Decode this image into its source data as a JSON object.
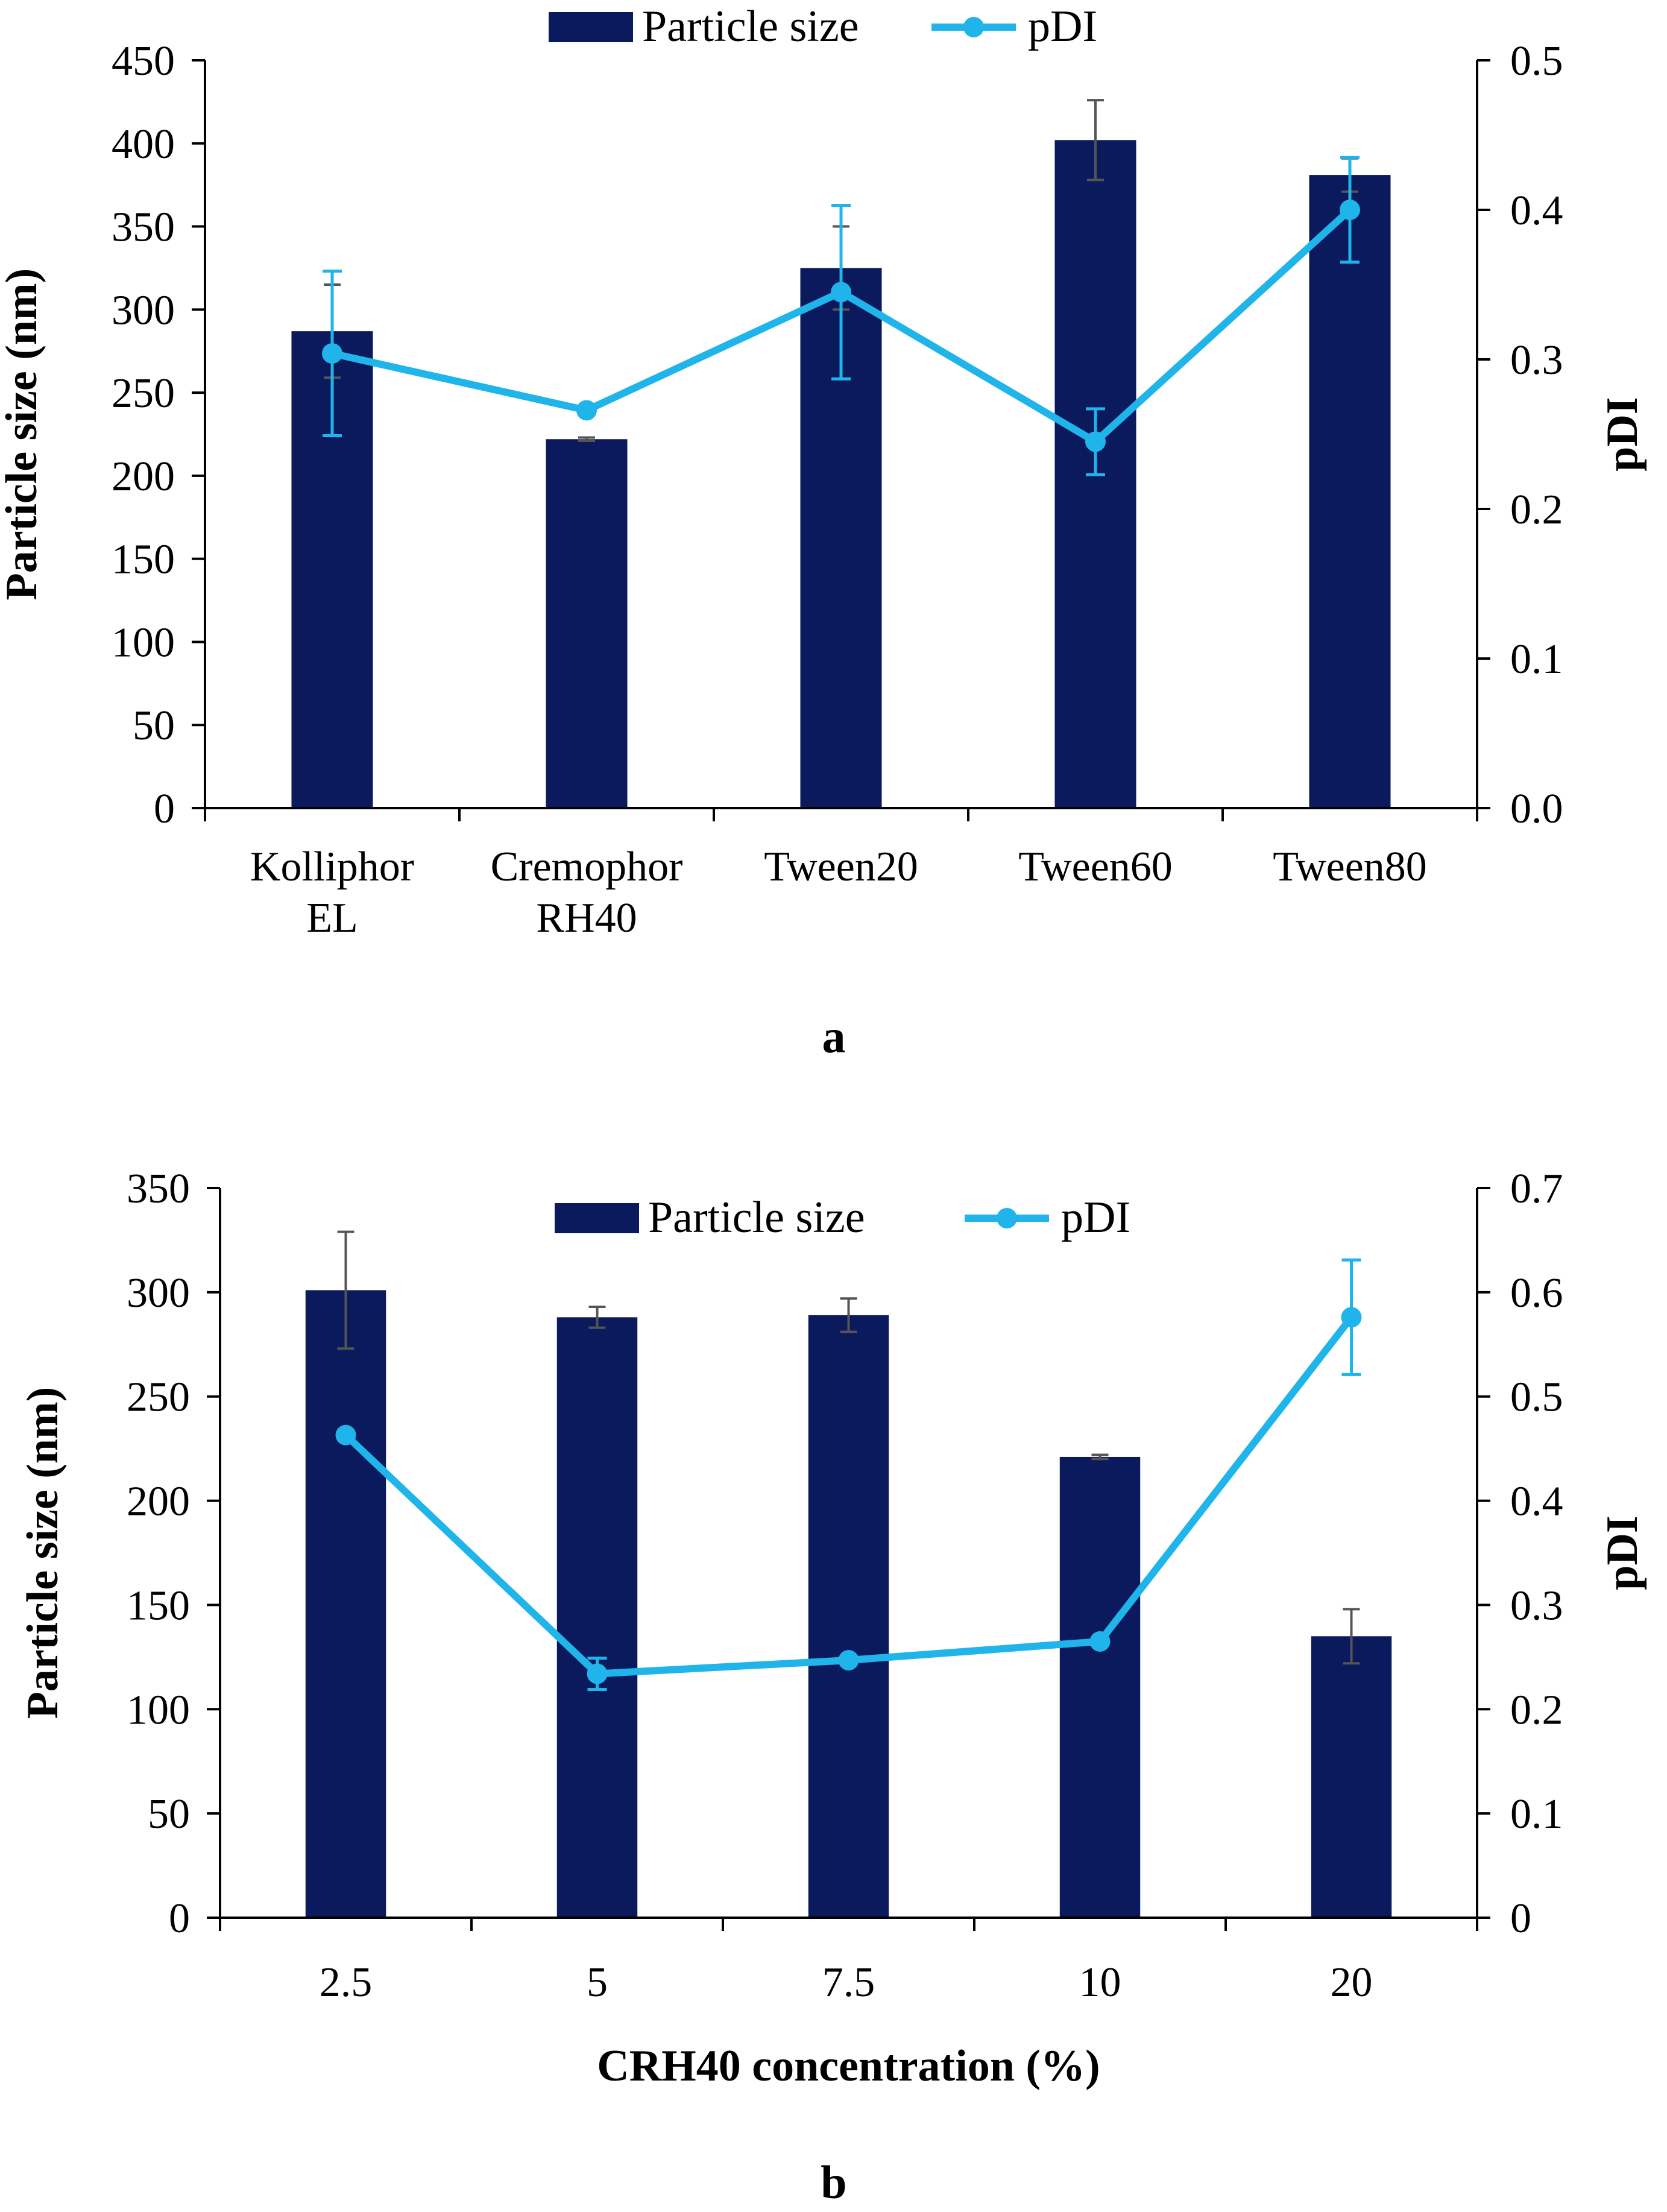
{
  "colors": {
    "bar": "#0a1a5c",
    "line": "#1fb4ea",
    "bar_error": "#555555",
    "axis": "#000000"
  },
  "chart_data": [
    {
      "type": "bar+line",
      "panel_label": "a",
      "categories": [
        [
          "Kolliphor",
          "EL"
        ],
        [
          "Cremophor",
          "RH40"
        ],
        [
          "Tween20"
        ],
        [
          "Tween60"
        ],
        [
          "Tween80"
        ]
      ],
      "xlabel": "",
      "ylabel": "Particle size (nm)",
      "y2label": "pDI",
      "ylim": [
        0,
        450
      ],
      "yticks": [
        0,
        50,
        100,
        150,
        200,
        250,
        300,
        350,
        400,
        450
      ],
      "ytick_labels": [
        "0",
        "50",
        "100",
        "150",
        "200",
        "250",
        "300",
        "350",
        "400",
        "450"
      ],
      "y2lim": [
        0,
        0.5
      ],
      "y2ticks": [
        0,
        0.1,
        0.2,
        0.3,
        0.4,
        0.5
      ],
      "y2tick_labels": [
        "0.0",
        "0.1",
        "0.2",
        "0.3",
        "0.4",
        "0.5"
      ],
      "legend": {
        "placement": "top-center"
      },
      "series": [
        {
          "name": "Particle size",
          "kind": "bar",
          "axis": "left",
          "values": [
            287,
            222,
            325,
            402,
            381
          ],
          "errors": [
            28,
            1,
            25,
            24,
            10
          ]
        },
        {
          "name": "pDI",
          "kind": "line",
          "axis": "right",
          "values": [
            0.304,
            0.266,
            0.345,
            0.245,
            0.4
          ],
          "errors": [
            0.055,
            0,
            0.058,
            0.022,
            0.035
          ]
        }
      ]
    },
    {
      "type": "bar+line",
      "panel_label": "b",
      "categories": [
        [
          "2.5"
        ],
        [
          "5"
        ],
        [
          "7.5"
        ],
        [
          "10"
        ],
        [
          "20"
        ]
      ],
      "xlabel": "CRH40 concentration (%)",
      "ylabel": "Particle size (nm)",
      "y2label": "pDI",
      "ylim": [
        0,
        350
      ],
      "yticks": [
        0,
        50,
        100,
        150,
        200,
        250,
        300,
        350
      ],
      "ytick_labels": [
        "0",
        "50",
        "100",
        "150",
        "200",
        "250",
        "300",
        "350"
      ],
      "y2lim": [
        0,
        0.7
      ],
      "y2ticks": [
        0,
        0.1,
        0.2,
        0.3,
        0.4,
        0.5,
        0.6,
        0.7
      ],
      "y2tick_labels": [
        "0",
        "0.1",
        "0.2",
        "0.3",
        "0.4",
        "0.5",
        "0.6",
        "0.7"
      ],
      "legend": {
        "placement": "top-center"
      },
      "series": [
        {
          "name": "Particle size",
          "kind": "bar",
          "axis": "left",
          "values": [
            301,
            288,
            289,
            221,
            135
          ],
          "errors": [
            28,
            5,
            8,
            1,
            13
          ]
        },
        {
          "name": "pDI",
          "kind": "line",
          "axis": "right",
          "values": [
            0.463,
            0.234,
            0.247,
            0.265,
            0.576
          ],
          "errors": [
            0,
            0.015,
            0,
            0,
            0.055
          ]
        }
      ]
    }
  ]
}
